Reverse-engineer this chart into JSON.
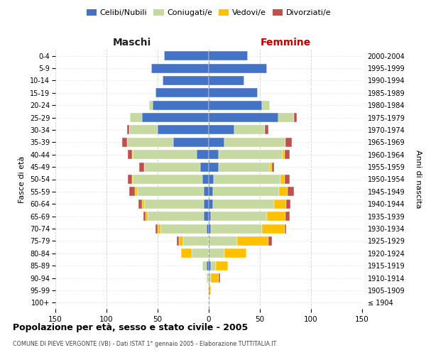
{
  "age_groups": [
    "100+",
    "95-99",
    "90-94",
    "85-89",
    "80-84",
    "75-79",
    "70-74",
    "65-69",
    "60-64",
    "55-59",
    "50-54",
    "45-49",
    "40-44",
    "35-39",
    "30-34",
    "25-29",
    "20-24",
    "15-19",
    "10-14",
    "5-9",
    "0-4"
  ],
  "birth_years": [
    "≤ 1904",
    "1905-1909",
    "1910-1914",
    "1915-1919",
    "1920-1924",
    "1925-1929",
    "1930-1934",
    "1935-1939",
    "1940-1944",
    "1945-1949",
    "1950-1954",
    "1955-1959",
    "1960-1964",
    "1965-1969",
    "1970-1974",
    "1975-1979",
    "1980-1984",
    "1985-1989",
    "1990-1994",
    "1995-1999",
    "2000-2004"
  ],
  "maschi": {
    "celibi": [
      0,
      0,
      0,
      2,
      0,
      0,
      2,
      5,
      5,
      5,
      6,
      8,
      12,
      35,
      50,
      65,
      55,
      52,
      45,
      56,
      44
    ],
    "coniugati": [
      0,
      0,
      2,
      4,
      17,
      25,
      45,
      55,
      58,
      65,
      68,
      55,
      62,
      45,
      28,
      12,
      3,
      0,
      0,
      0,
      0
    ],
    "vedovi": [
      0,
      0,
      0,
      0,
      10,
      4,
      3,
      2,
      2,
      2,
      1,
      0,
      1,
      0,
      0,
      0,
      0,
      0,
      0,
      0,
      0
    ],
    "divorziati": [
      0,
      0,
      0,
      0,
      0,
      2,
      2,
      2,
      4,
      6,
      4,
      5,
      4,
      5,
      2,
      0,
      0,
      0,
      0,
      0,
      0
    ]
  },
  "femmine": {
    "nubili": [
      0,
      0,
      0,
      2,
      0,
      0,
      2,
      2,
      4,
      4,
      5,
      10,
      10,
      15,
      25,
      68,
      52,
      48,
      35,
      57,
      38
    ],
    "coniugate": [
      0,
      0,
      2,
      5,
      15,
      28,
      50,
      55,
      60,
      65,
      65,
      50,
      62,
      60,
      30,
      15,
      8,
      0,
      0,
      0,
      0
    ],
    "vedove": [
      0,
      2,
      8,
      12,
      22,
      30,
      22,
      18,
      12,
      8,
      4,
      2,
      2,
      0,
      0,
      0,
      0,
      0,
      0,
      0,
      0
    ],
    "divorziate": [
      0,
      0,
      1,
      0,
      0,
      4,
      2,
      4,
      4,
      6,
      5,
      2,
      5,
      6,
      3,
      3,
      0,
      0,
      0,
      0,
      0
    ]
  },
  "color_celibi": "#4472c4",
  "color_coniugati": "#c5d9a0",
  "color_vedovi": "#ffc000",
  "color_divorziati": "#c0504d",
  "title": "Popolazione per età, sesso e stato civile - 2005",
  "subtitle": "COMUNE DI PIEVE VERGONTE (VB) - Dati ISTAT 1° gennaio 2005 - Elaborazione TUTTITALIA.IT",
  "ylabel_left": "Fasce di età",
  "ylabel_right": "Anni di nascita",
  "xlabel_maschi": "Maschi",
  "xlabel_femmine": "Femmine",
  "xlim": 150,
  "bg_color": "#ffffff",
  "grid_color": "#cccccc"
}
